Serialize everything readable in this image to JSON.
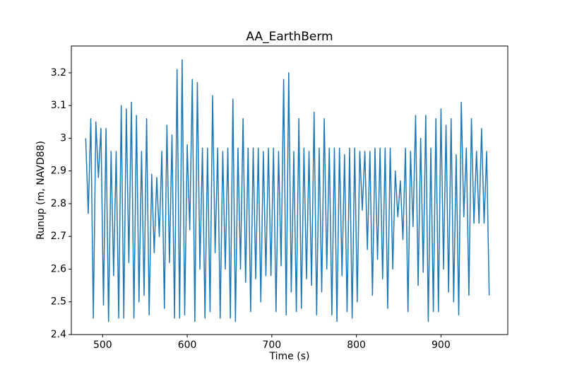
{
  "chart_data": {
    "type": "line",
    "title": "AA_EarthBerm",
    "x_label": "Time (s)",
    "y_label": "Runup (m, NAVD88)",
    "xlim": [
      463,
      979
    ],
    "xticks": [
      500,
      600,
      700,
      800,
      900
    ],
    "ylim": [
      2.4,
      3.282
    ],
    "yticks": [
      2.4,
      2.5,
      2.6,
      2.7,
      2.8,
      2.9,
      3.0,
      3.1,
      3.2
    ],
    "series": [
      {
        "color": "#1f77b4",
        "x": [
          480,
          483,
          486,
          489,
          492,
          495,
          498,
          501,
          504,
          507,
          510,
          513,
          516,
          519,
          522,
          525,
          528,
          531,
          534,
          537,
          540,
          543,
          546,
          549,
          552,
          555,
          558,
          561,
          564,
          567,
          570,
          573,
          576,
          579,
          582,
          585,
          588,
          591,
          594,
          597,
          600,
          603,
          606,
          609,
          612,
          615,
          618,
          621,
          624,
          627,
          630,
          633,
          636,
          639,
          642,
          645,
          648,
          651,
          654,
          657,
          660,
          663,
          666,
          669,
          672,
          675,
          678,
          681,
          684,
          687,
          690,
          693,
          696,
          699,
          702,
          705,
          708,
          711,
          714,
          717,
          720,
          723,
          726,
          729,
          732,
          735,
          738,
          741,
          744,
          747,
          750,
          753,
          756,
          759,
          762,
          765,
          768,
          771,
          774,
          777,
          780,
          783,
          786,
          789,
          792,
          795,
          798,
          801,
          804,
          807,
          810,
          813,
          816,
          819,
          822,
          825,
          828,
          831,
          834,
          837,
          840,
          843,
          846,
          849,
          852,
          855,
          858,
          861,
          864,
          867,
          870,
          873,
          876,
          879,
          882,
          885,
          888,
          891,
          894,
          897,
          900,
          903,
          906,
          909,
          912,
          915,
          918,
          921,
          924,
          927,
          930,
          933,
          936,
          939,
          942,
          945,
          948,
          951,
          954,
          957
        ],
        "values": [
          3.0,
          2.77,
          3.06,
          2.45,
          3.05,
          2.88,
          3.03,
          2.49,
          3.03,
          2.44,
          2.96,
          2.58,
          2.96,
          2.45,
          3.1,
          2.45,
          3.09,
          2.62,
          3.11,
          2.45,
          3.07,
          2.5,
          2.96,
          2.52,
          3.06,
          2.46,
          2.89,
          2.65,
          2.88,
          2.7,
          2.96,
          2.48,
          3.04,
          2.62,
          3.01,
          2.45,
          3.21,
          2.45,
          3.24,
          2.46,
          2.98,
          2.72,
          3.18,
          2.44,
          3.17,
          2.6,
          2.97,
          2.45,
          2.97,
          2.47,
          3.13,
          2.65,
          2.97,
          2.45,
          2.96,
          2.6,
          2.97,
          2.45,
          3.12,
          2.44,
          2.97,
          2.6,
          3.06,
          2.56,
          2.97,
          2.47,
          2.97,
          2.57,
          2.97,
          2.5,
          2.96,
          2.58,
          2.97,
          2.58,
          2.97,
          2.47,
          2.96,
          2.61,
          3.18,
          2.46,
          3.2,
          2.53,
          2.96,
          2.47,
          3.06,
          2.48,
          2.97,
          2.57,
          2.96,
          2.55,
          3.08,
          2.46,
          2.97,
          2.53,
          3.06,
          2.6,
          2.97,
          2.46,
          2.97,
          2.44,
          2.97,
          2.58,
          2.95,
          2.47,
          2.97,
          2.45,
          2.97,
          2.5,
          2.96,
          2.78,
          2.96,
          2.66,
          2.96,
          2.52,
          2.97,
          2.63,
          2.97,
          2.57,
          2.97,
          2.48,
          2.97,
          2.6,
          2.9,
          2.76,
          2.87,
          2.69,
          2.97,
          2.47,
          2.96,
          2.73,
          3.07,
          2.55,
          3.0,
          2.59,
          3.07,
          2.44,
          2.97,
          2.47,
          3.06,
          2.47,
          3.09,
          2.6,
          3.04,
          2.53,
          3.06,
          2.5,
          2.95,
          2.46,
          3.11,
          2.76,
          2.97,
          2.52,
          3.06,
          2.74,
          2.96,
          2.74,
          3.03,
          2.74,
          2.96,
          2.52
        ]
      }
    ]
  }
}
